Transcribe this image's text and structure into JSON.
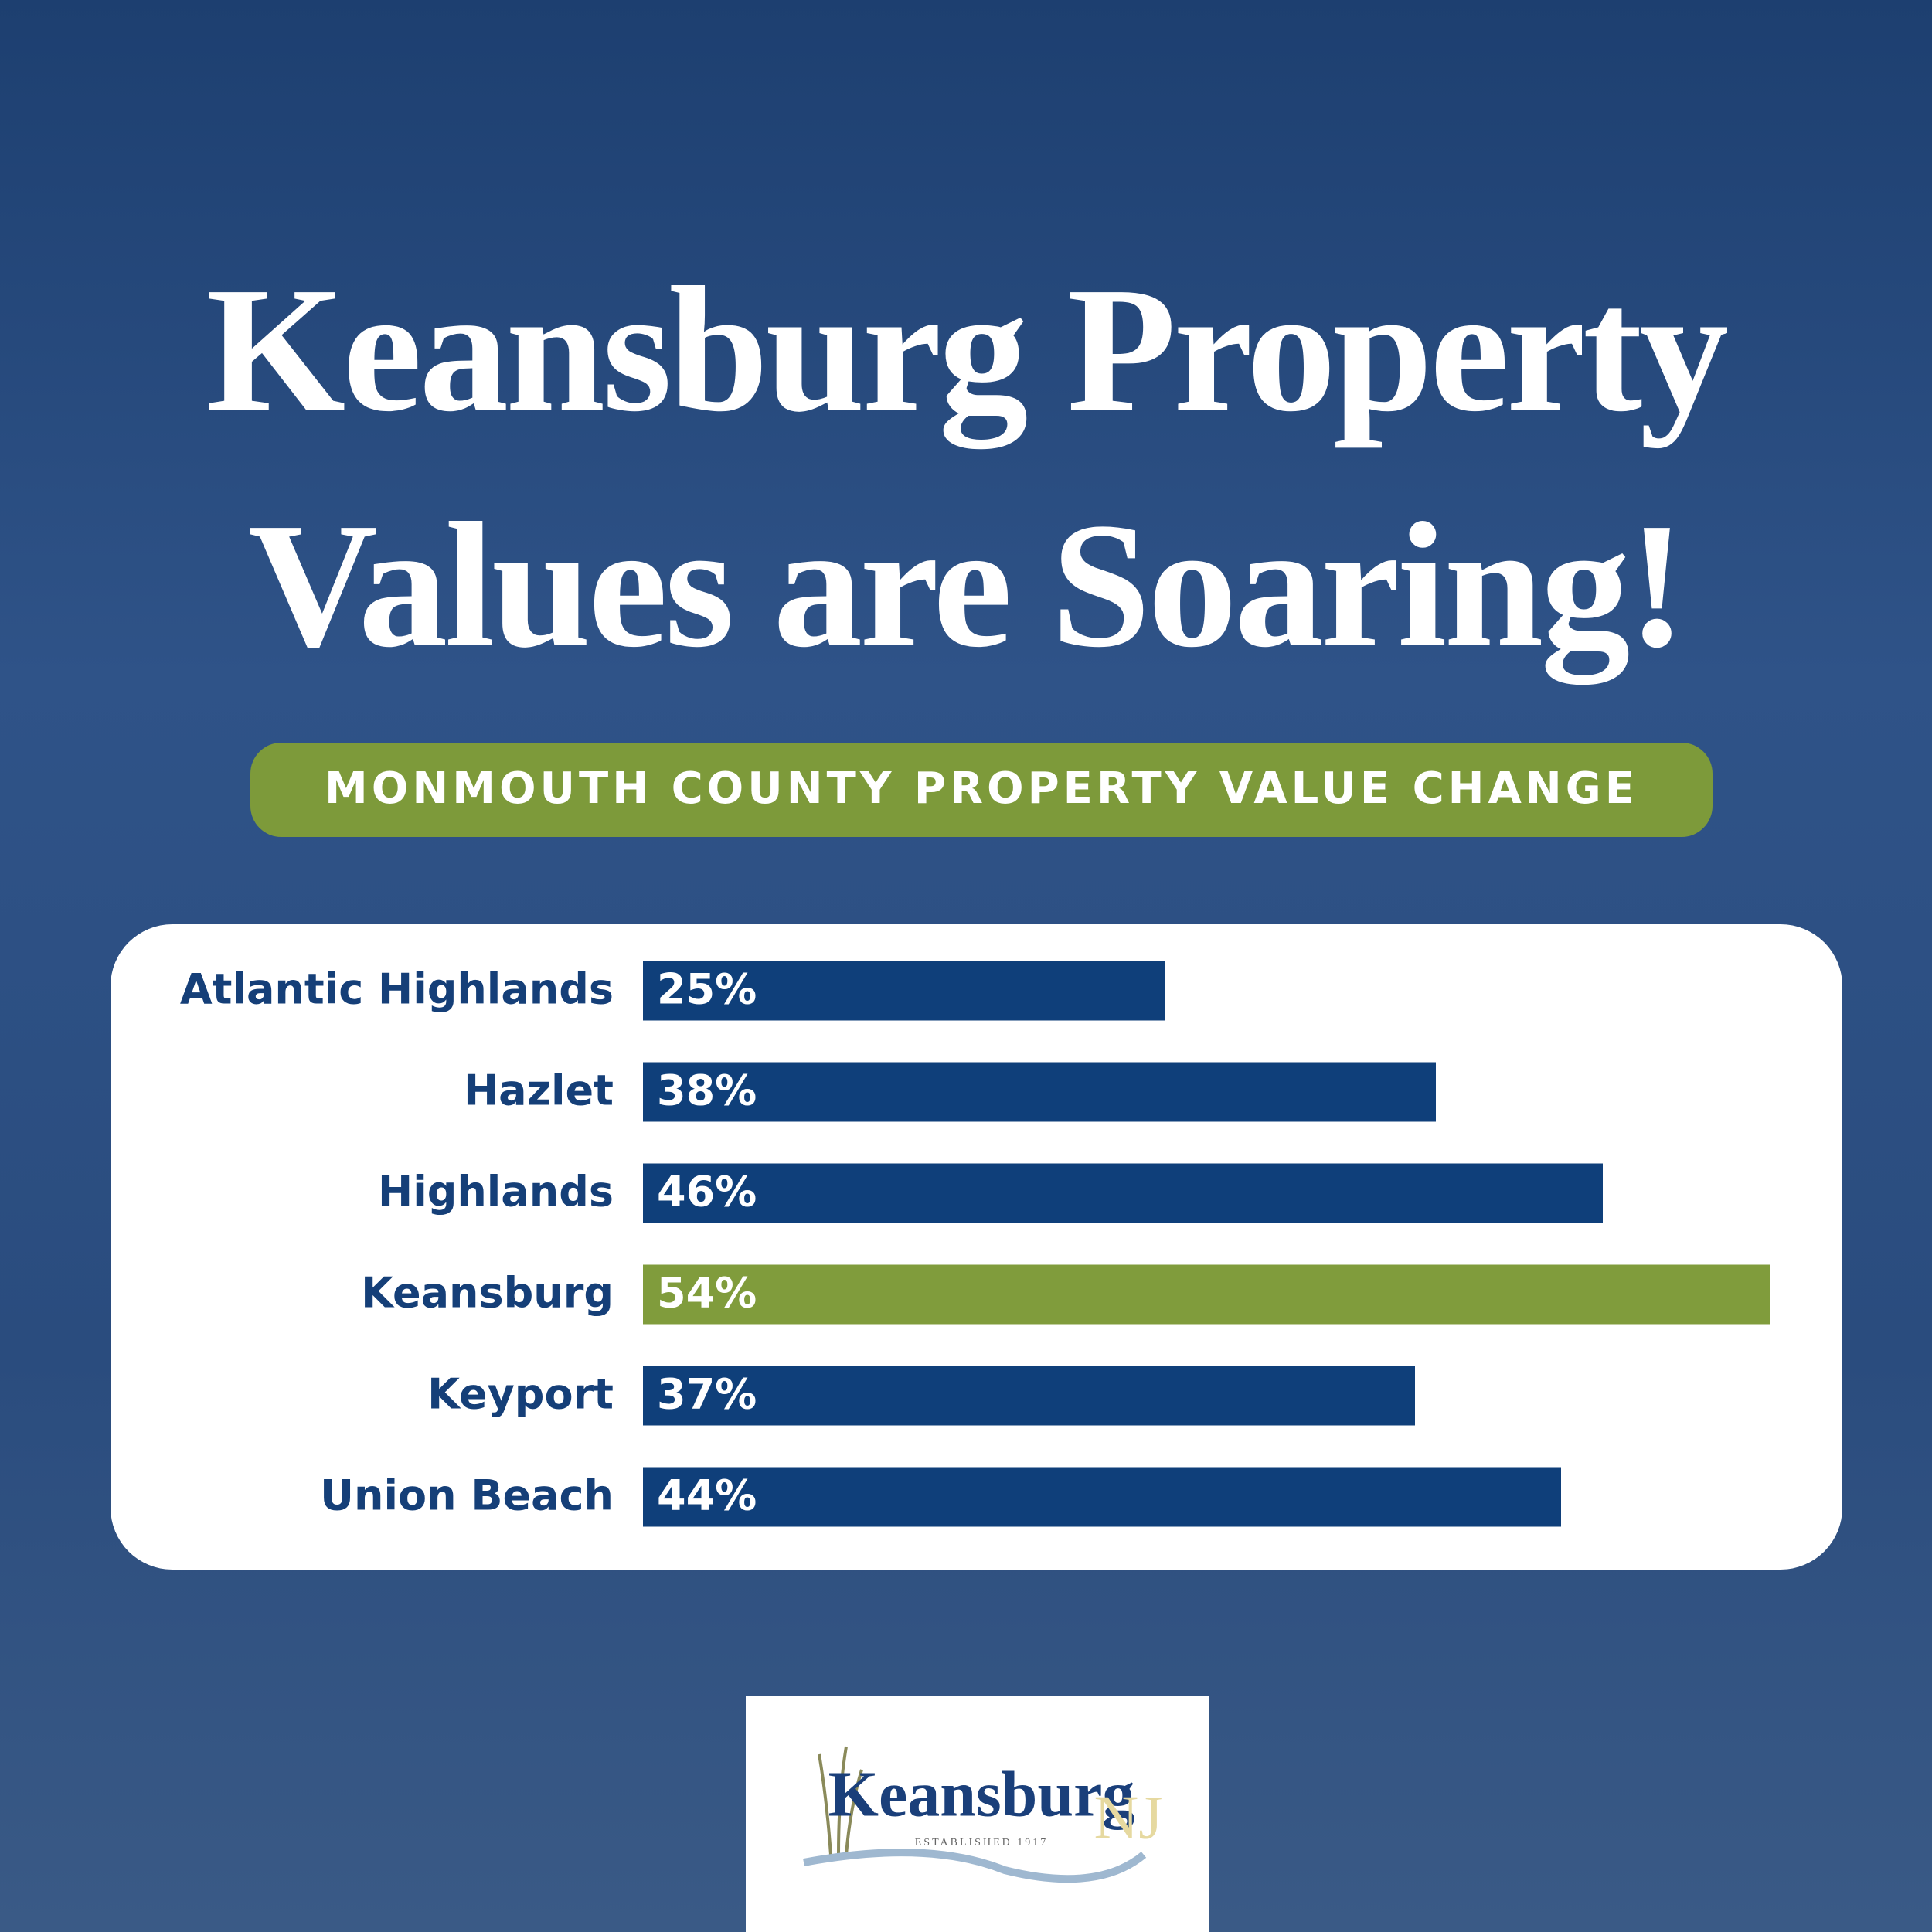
{
  "chart_data": {
    "type": "bar",
    "orientation": "horizontal",
    "title": "Keansburg Property Values are Soaring!",
    "subtitle": "MONMOUTH COUNTY PROPERTY VALUE CHANGE",
    "categories": [
      "Atlantic Highlands",
      "Hazlet",
      "Highlands",
      "Keansburg",
      "Keyport",
      "Union Beach"
    ],
    "values": [
      25,
      38,
      46,
      54,
      37,
      44
    ],
    "value_labels": [
      "25%",
      "38%",
      "46%",
      "54%",
      "37%",
      "44%"
    ],
    "colors": [
      "#0f3f7a",
      "#0f3f7a",
      "#0f3f7a",
      "#809c3c",
      "#0f3f7a",
      "#0f3f7a"
    ]
  },
  "logo": {
    "name": "Keansburg",
    "state": "NJ",
    "tagline": "ESTABLISHED 1917"
  }
}
